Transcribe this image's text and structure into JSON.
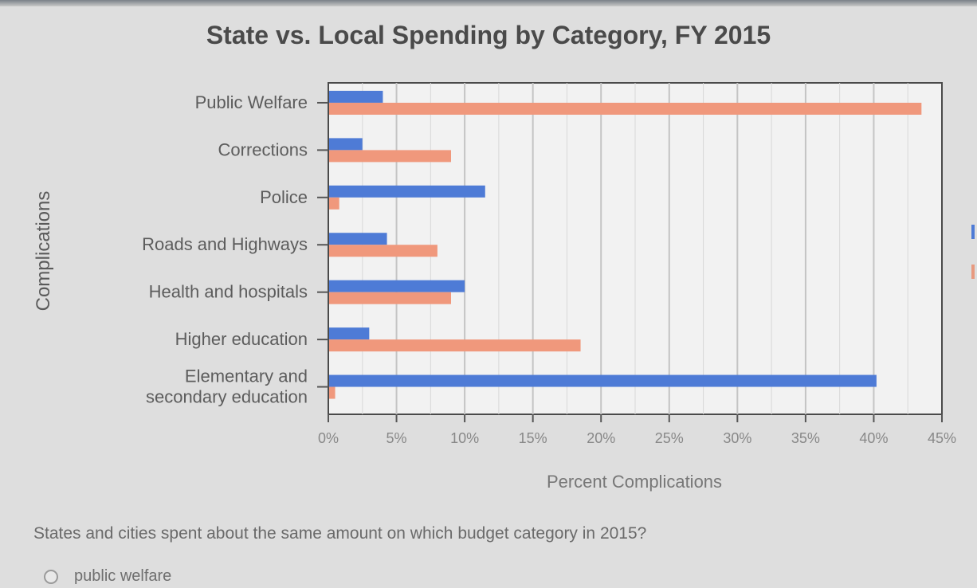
{
  "chart_data": {
    "type": "bar",
    "orientation": "horizontal",
    "title": "State vs. Local Spending by Category, FY 2015",
    "xlabel": "Percent Complications",
    "ylabel": "Complications",
    "categories": [
      "Public Welfare",
      "Corrections",
      "Police",
      "Roads and Highways",
      "Health and hospitals",
      "Higher education",
      "Elementary and secondary education"
    ],
    "category_lines": [
      [
        "Public Welfare"
      ],
      [
        "Corrections"
      ],
      [
        "Police"
      ],
      [
        "Roads and Highways"
      ],
      [
        "Health and hospitals"
      ],
      [
        "Higher education"
      ],
      [
        "Elementary and",
        "secondary education"
      ]
    ],
    "series": [
      {
        "color": "#4e7bd6",
        "values": [
          4,
          2.5,
          11.5,
          4.3,
          10,
          3,
          40.2
        ]
      },
      {
        "color": "#f0987c",
        "values": [
          43.5,
          9,
          0.8,
          8,
          9,
          18.5,
          0.5
        ]
      }
    ],
    "xticks": [
      "0%",
      "5%",
      "10%",
      "15%",
      "20%",
      "25%",
      "30%",
      "35%",
      "40%",
      "45%"
    ],
    "xlim": [
      0,
      45
    ],
    "grid": true,
    "legend": "none"
  },
  "question": {
    "text": "States and cities spent about the same amount on which budget category in 2015?",
    "options": [
      "public welfare"
    ]
  }
}
